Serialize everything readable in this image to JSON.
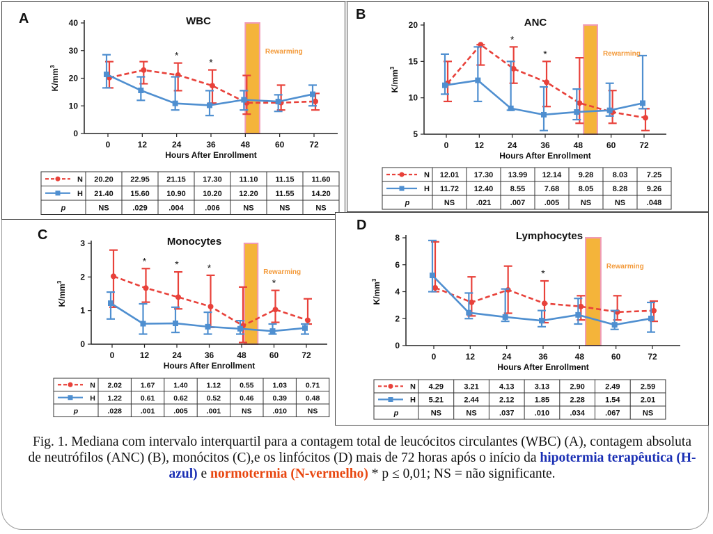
{
  "colors": {
    "normothermia": "#e8413a",
    "hypothermia": "#4f8fd0",
    "rewarming_fill": "#f4b43a",
    "rewarming_border": "#f09ab5",
    "rewarming_text": "#f39a3a",
    "caption_blue": "#1a2fb4",
    "caption_red": "#e8460f"
  },
  "chart_data": [
    {
      "type": "line",
      "panel_letter": "A",
      "title": "WBC",
      "xlabel": "Hours After Enrollment",
      "ylabel_main": "K/mm",
      "ylabel_sup": "3",
      "x": [
        0,
        12,
        24,
        36,
        48,
        60,
        72
      ],
      "xticks": [
        "0",
        "12",
        "24",
        "36",
        "48",
        "60",
        "72"
      ],
      "ylim": [
        0,
        40
      ],
      "yticks": [
        "0",
        "10",
        "20",
        "30",
        "40"
      ],
      "rewarming_label": "Rewarming",
      "rewarming_range": [
        48,
        53
      ],
      "asterisks": [
        24,
        36
      ],
      "asterisk_text": "*",
      "series": [
        {
          "name": "N",
          "values": [
            20.2,
            22.95,
            21.15,
            17.3,
            11.1,
            11.15,
            11.6
          ],
          "low": [
            16.5,
            18.0,
            15.5,
            11.0,
            7.0,
            8.5,
            8.5
          ],
          "high": [
            26.0,
            26.0,
            25.5,
            23.0,
            21.0,
            17.5,
            14.5
          ]
        },
        {
          "name": "H",
          "values": [
            21.4,
            15.6,
            10.9,
            10.2,
            12.2,
            11.55,
            14.2
          ],
          "low": [
            16.5,
            12.0,
            8.5,
            6.5,
            8.5,
            8.0,
            10.0
          ],
          "high": [
            28.5,
            20.5,
            20.5,
            15.5,
            15.5,
            14.0,
            17.5
          ]
        }
      ],
      "table": {
        "rows": [
          {
            "label": "N",
            "cells": [
              "20.20",
              "22.95",
              "21.15",
              "17.30",
              "11.10",
              "11.15",
              "11.60"
            ]
          },
          {
            "label": "H",
            "cells": [
              "21.40",
              "15.60",
              "10.90",
              "10.20",
              "12.20",
              "11.55",
              "14.20"
            ]
          },
          {
            "label": "p",
            "cells": [
              "NS",
              ".029",
              ".004",
              ".006",
              "NS",
              "NS",
              "NS"
            ]
          }
        ]
      }
    },
    {
      "type": "line",
      "panel_letter": "B",
      "title": "ANC",
      "xlabel": "Hours After Enrollment",
      "ylabel_main": "K/mm",
      "ylabel_sup": "3",
      "x": [
        0,
        12,
        24,
        36,
        48,
        60,
        72
      ],
      "xticks": [
        "0",
        "12",
        "24",
        "36",
        "48",
        "60",
        "72"
      ],
      "ylim": [
        5,
        20
      ],
      "yticks": [
        "5",
        "10",
        "15",
        "20"
      ],
      "rewarming_label": "Rewarming",
      "rewarming_range": [
        50,
        55
      ],
      "asterisks": [
        24,
        36
      ],
      "asterisk_text": "*",
      "series": [
        {
          "name": "N",
          "values": [
            12.01,
            17.3,
            13.99,
            12.14,
            9.28,
            8.03,
            7.25
          ],
          "low": [
            9.5,
            14.5,
            12.0,
            8.8,
            6.5,
            6.5,
            5.5
          ],
          "high": [
            15.0,
            17.3,
            17.0,
            15.0,
            15.5,
            11.0,
            8.5
          ]
        },
        {
          "name": "H",
          "values": [
            11.72,
            12.4,
            8.55,
            7.68,
            8.05,
            8.28,
            9.26
          ],
          "low": [
            10.5,
            9.5,
            8.3,
            5.5,
            7.0,
            7.5,
            8.5
          ],
          "high": [
            16.0,
            17.0,
            15.0,
            11.5,
            11.2,
            12.0,
            15.8
          ]
        }
      ],
      "table": {
        "rows": [
          {
            "label": "N",
            "cells": [
              "12.01",
              "17.30",
              "13.99",
              "12.14",
              "9.28",
              "8.03",
              "7.25"
            ]
          },
          {
            "label": "H",
            "cells": [
              "11.72",
              "12.40",
              "8.55",
              "7.68",
              "8.05",
              "8.28",
              "9.26"
            ]
          },
          {
            "label": "p",
            "cells": [
              "NS",
              ".021",
              ".007",
              ".005",
              "NS",
              "NS",
              ".048"
            ]
          }
        ]
      }
    },
    {
      "type": "line",
      "panel_letter": "C",
      "title": "Monocytes",
      "xlabel": "Hours After Enrollment",
      "ylabel_main": "K/mm",
      "ylabel_sup": "3",
      "x": [
        0,
        12,
        24,
        36,
        48,
        60,
        72
      ],
      "xticks": [
        "0",
        "12",
        "24",
        "36",
        "48",
        "60",
        "72"
      ],
      "ylim": [
        0,
        3
      ],
      "yticks": [
        "0",
        "1",
        "2",
        "3"
      ],
      "rewarming_label": "Rewarming",
      "rewarming_range": [
        49,
        54
      ],
      "asterisks": [
        12,
        24,
        36,
        60
      ],
      "asterisk_text": "*",
      "series": [
        {
          "name": "N",
          "values": [
            2.02,
            1.67,
            1.4,
            1.12,
            0.55,
            1.03,
            0.71
          ],
          "low": [
            1.1,
            1.25,
            1.05,
            0.5,
            0.05,
            0.65,
            0.6
          ],
          "high": [
            2.8,
            2.25,
            2.15,
            2.05,
            1.7,
            1.6,
            1.35
          ]
        },
        {
          "name": "H",
          "values": [
            1.22,
            0.61,
            0.62,
            0.52,
            0.46,
            0.39,
            0.48
          ],
          "low": [
            0.75,
            0.3,
            0.35,
            0.3,
            0.3,
            0.3,
            0.3
          ],
          "high": [
            1.55,
            1.2,
            1.1,
            0.95,
            0.7,
            0.6,
            0.6
          ]
        }
      ],
      "table": {
        "rows": [
          {
            "label": "N",
            "cells": [
              "2.02",
              "1.67",
              "1.40",
              "1.12",
              "0.55",
              "1.03",
              "0.71"
            ]
          },
          {
            "label": "H",
            "cells": [
              "1.22",
              "0.61",
              "0.62",
              "0.52",
              "0.46",
              "0.39",
              "0.48"
            ]
          },
          {
            "label": "p",
            "cells": [
              ".028",
              ".001",
              ".005",
              ".001",
              "NS",
              ".010",
              "NS"
            ]
          }
        ]
      }
    },
    {
      "type": "line",
      "panel_letter": "D",
      "title": "Lymphocytes",
      "xlabel": "Hours After Enrollment",
      "ylabel_main": "K/mm",
      "ylabel_sup": "3",
      "x": [
        0,
        12,
        24,
        36,
        48,
        60,
        72
      ],
      "xticks": [
        "0",
        "12",
        "24",
        "36",
        "48",
        "60",
        "72"
      ],
      "ylim": [
        0,
        8
      ],
      "yticks": [
        "0",
        "2",
        "4",
        "6",
        "8"
      ],
      "rewarming_label": "Rewarming",
      "rewarming_range": [
        50,
        55
      ],
      "asterisks": [
        36
      ],
      "asterisk_text": "*",
      "series": [
        {
          "name": "N",
          "values": [
            4.29,
            3.21,
            4.13,
            3.13,
            2.9,
            2.49,
            2.59
          ],
          "low": [
            4.0,
            2.2,
            2.4,
            1.7,
            1.9,
            1.9,
            1.8
          ],
          "high": [
            7.7,
            5.1,
            5.9,
            4.8,
            3.7,
            3.7,
            3.3
          ]
        },
        {
          "name": "H",
          "values": [
            5.21,
            2.44,
            2.12,
            1.85,
            2.28,
            1.54,
            2.01
          ],
          "low": [
            4.0,
            2.0,
            1.8,
            1.4,
            1.6,
            1.2,
            1.0
          ],
          "high": [
            7.8,
            3.9,
            4.2,
            2.6,
            3.5,
            2.6,
            3.2
          ]
        }
      ],
      "table": {
        "rows": [
          {
            "label": "N",
            "cells": [
              "4.29",
              "3.21",
              "4.13",
              "3.13",
              "2.90",
              "2.49",
              "2.59"
            ]
          },
          {
            "label": "H",
            "cells": [
              "5.21",
              "2.44",
              "2.12",
              "1.85",
              "2.28",
              "1.54",
              "2.01"
            ]
          },
          {
            "label": "p",
            "cells": [
              "NS",
              "NS",
              ".037",
              ".010",
              ".034",
              ".067",
              "NS"
            ]
          }
        ]
      }
    }
  ],
  "caption": {
    "part1": "Fig. 1. Mediana com intervalo interquartil para a contagem total de leucócitos circulantes (WBC) (A), contagem absoluta de neutrófilos (ANC) (B), monócitos (C),e os linfócitos (D) mais de 72 horas após o início da ",
    "blue": "hipotermia terapêutica (H-azul)",
    "part2": " e ",
    "red": "normotermia (N-vermelho)",
    "part3": " * p ≤ 0,01; NS = não significante."
  }
}
